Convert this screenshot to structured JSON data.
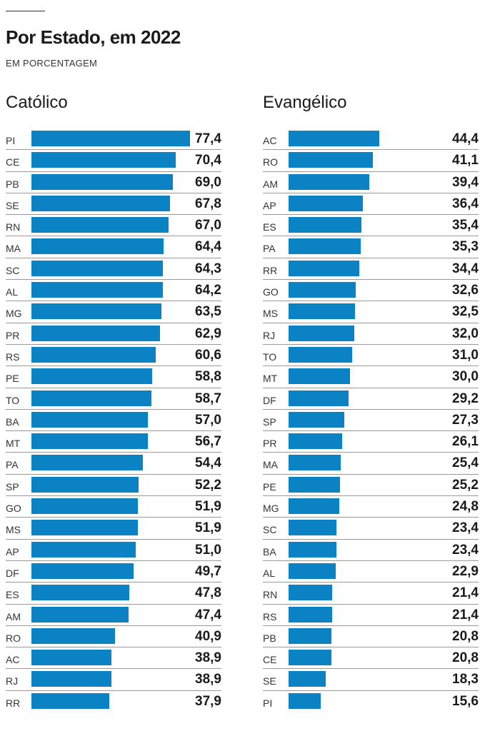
{
  "header": {
    "title": "Por Estado, em 2022",
    "subtitle": "EM PORCENTAGEM"
  },
  "colors": {
    "bar": "#0b82c4"
  },
  "chart_data": [
    {
      "type": "bar",
      "orientation": "horizontal",
      "title": "Católico",
      "xlim": [
        0,
        77.4
      ],
      "categories": [
        "PI",
        "CE",
        "PB",
        "SE",
        "RN",
        "MA",
        "SC",
        "AL",
        "MG",
        "PR",
        "RS",
        "PE",
        "TO",
        "BA",
        "MT",
        "PA",
        "SP",
        "GO",
        "MS",
        "AP",
        "DF",
        "ES",
        "AM",
        "RO",
        "AC",
        "RJ",
        "RR"
      ],
      "values": [
        77.4,
        70.4,
        69.0,
        67.8,
        67.0,
        64.4,
        64.3,
        64.2,
        63.5,
        62.9,
        60.6,
        58.8,
        58.7,
        57.0,
        56.7,
        54.4,
        52.2,
        51.9,
        51.9,
        51.0,
        49.7,
        47.8,
        47.4,
        40.9,
        38.9,
        38.9,
        37.9
      ],
      "labels": [
        "77,4",
        "70,4",
        "69,0",
        "67,8",
        "67,0",
        "64,4",
        "64,3",
        "64,2",
        "63,5",
        "62,9",
        "60,6",
        "58,8",
        "58,7",
        "57,0",
        "56,7",
        "54,4",
        "52,2",
        "51,9",
        "51,9",
        "51,0",
        "49,7",
        "47,8",
        "47,4",
        "40,9",
        "38,9",
        "38,9",
        "37,9"
      ]
    },
    {
      "type": "bar",
      "orientation": "horizontal",
      "title": "Evangélico",
      "xlim": [
        0,
        77.4
      ],
      "categories": [
        "AC",
        "RO",
        "AM",
        "AP",
        "ES",
        "PA",
        "RR",
        "GO",
        "MS",
        "RJ",
        "TO",
        "MT",
        "DF",
        "SP",
        "PR",
        "MA",
        "PE",
        "MG",
        "SC",
        "BA",
        "AL",
        "RN",
        "RS",
        "PB",
        "CE",
        "SE",
        "PI"
      ],
      "values": [
        44.4,
        41.1,
        39.4,
        36.4,
        35.4,
        35.3,
        34.4,
        32.6,
        32.5,
        32.0,
        31.0,
        30.0,
        29.2,
        27.3,
        26.1,
        25.4,
        25.2,
        24.8,
        23.4,
        23.4,
        22.9,
        21.4,
        21.4,
        20.8,
        20.8,
        18.3,
        15.6
      ],
      "labels": [
        "44,4",
        "41,1",
        "39,4",
        "36,4",
        "35,4",
        "35,3",
        "34,4",
        "32,6",
        "32,5",
        "32,0",
        "31,0",
        "30,0",
        "29,2",
        "27,3",
        "26,1",
        "25,4",
        "25,2",
        "24,8",
        "23,4",
        "23,4",
        "22,9",
        "21,4",
        "21,4",
        "20,8",
        "20,8",
        "18,3",
        "15,6"
      ]
    }
  ]
}
